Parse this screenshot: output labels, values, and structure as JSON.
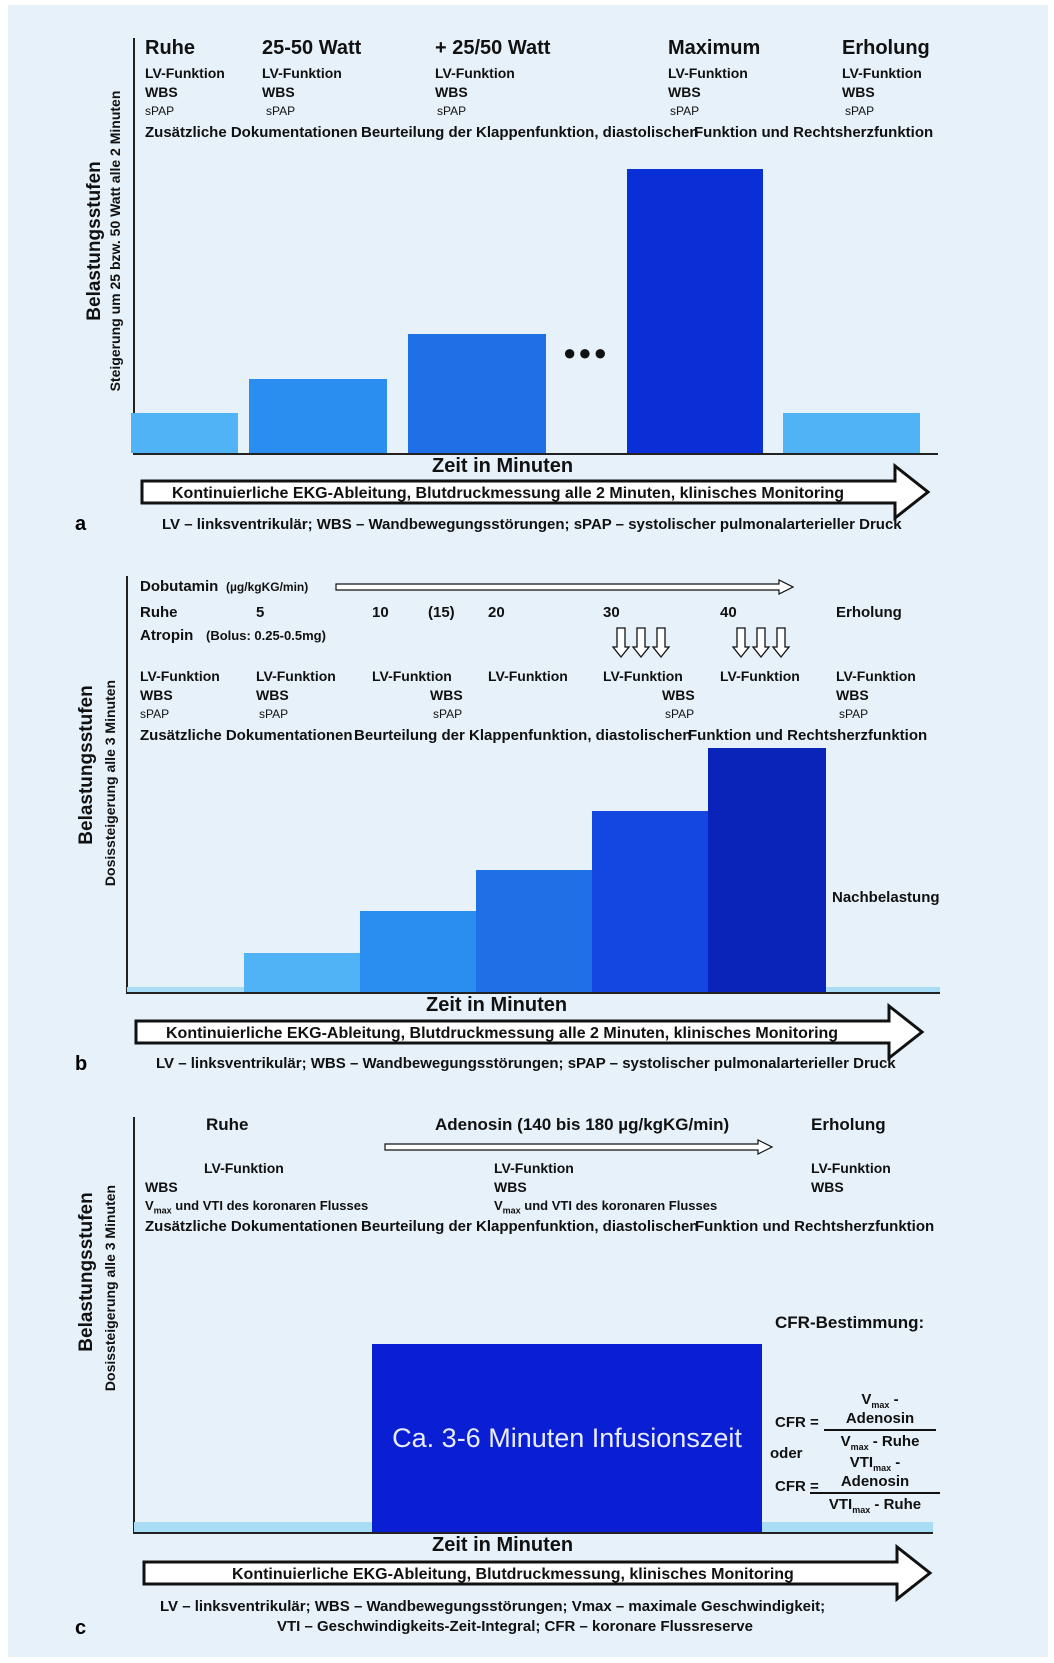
{
  "panel_a": {
    "label": "a",
    "ylabel_main": "Belastungsstufen",
    "ylabel_sub": "Steigerung um 25 bzw. 50 Watt alle 2 Minuten",
    "stages": [
      {
        "name": "Ruhe",
        "items": [
          "LV-Funktion",
          "WBS",
          "sPAP"
        ]
      },
      {
        "name": "25-50 Watt",
        "items": [
          "LV-Funktion",
          "WBS",
          "sPAP"
        ]
      },
      {
        "name": "+ 25/50 Watt",
        "items": [
          "LV-Funktion",
          "WBS",
          "sPAP"
        ]
      },
      {
        "name": "Maximum",
        "items": [
          "LV-Funktion",
          "WBS",
          "sPAP"
        ]
      },
      {
        "name": "Erholung",
        "items": [
          "LV-Funktion",
          "WBS",
          "sPAP"
        ]
      }
    ],
    "doc_line_1": "Zusätzliche Dokumentationen",
    "doc_line_2": "Beurteilung der Klappenfunktion, diastolischen",
    "doc_line_3": "Funktion und Rechtsherzfunktion",
    "ellipsis": "●●●",
    "xlabel": "Zeit in Minuten",
    "arrow_text": "Kontinuierliche EKG-Ableitung, Blutdruckmessung alle 2 Minuten, klinisches Monitoring",
    "footnote": "LV – linksventrikulär; WBS – Wandbewegungsstörungen; sPAP – systolischer pulmonalarterieller Druck",
    "bar_levels": [
      0.14,
      0.26,
      0.42,
      1.0,
      0.14
    ],
    "bar_colors": [
      "#4fb3f5",
      "#2a8ef0",
      "#1f70e6",
      "#0b2fd6",
      "#4fb3f5"
    ]
  },
  "panel_b": {
    "label": "b",
    "ylabel_main": "Belastungsstufen",
    "ylabel_sub": "Dosissteigerung alle 3 Minuten",
    "dobutamin": "Dobutamin",
    "dobutamin_unit": "(µg/kgKG/min)",
    "doses": [
      "Ruhe",
      "5",
      "10",
      "(15)",
      "20",
      "30",
      "40",
      "Erholung"
    ],
    "atropin": "Atropin",
    "atropin_dose": "(Bolus: 0.25-0.5mg)",
    "lv_items": [
      "LV-Funktion",
      "LV-Funktion",
      "LV-Funktion",
      "LV-Funktion",
      "LV-Funktion",
      "LV-Funktion",
      "LV-Funktion"
    ],
    "wbs_items": [
      "WBS",
      "WBS",
      "WBS",
      "WBS",
      "WBS"
    ],
    "spap_items": [
      "sPAP",
      "sPAP",
      "sPAP",
      "sPAP",
      "sPAP"
    ],
    "doc_line_1": "Zusätzliche Dokumentationen",
    "doc_line_2": "Beurteilung der Klappenfunktion, diastolischen",
    "doc_line_3": "Funktion und Rechtsherzfunktion",
    "nachbelastung": "Nachbelastung",
    "xlabel": "Zeit in Minuten",
    "arrow_text": "Kontinuierliche EKG-Ableitung, Blutdruckmessung alle 2 Minuten, klinisches Monitoring",
    "footnote": "LV – linksventrikulär; WBS – Wandbewegungsstörungen; sPAP – systolischer pulmonalarterieller Druck",
    "bar_levels": [
      0.02,
      0.16,
      0.33,
      0.5,
      0.74,
      1.0,
      0.02
    ],
    "bar_colors": [
      "#a9dcf5",
      "#4fb3f5",
      "#2a8ef0",
      "#1f70e6",
      "#1447e0",
      "#0a23b8",
      "#a9dcf5"
    ]
  },
  "panel_c": {
    "label": "c",
    "ylabel_main": "Belastungsstufen",
    "ylabel_sub": "Dosissteigerung alle 3 Minuten",
    "ruhe": "Ruhe",
    "adenosin": "Adenosin (140 bis 180 µg/kgKG/min)",
    "erholung": "Erholung",
    "lv": "LV-Funktion",
    "wbs": "WBS",
    "vmax_prefix": "V",
    "vmax_sub": "max",
    "vmax_suffix": " und VTI des koronaren Flusses",
    "doc_line_1": "Zusätzliche Dokumentationen",
    "doc_line_2": "Beurteilung der Klappenfunktion, diastolischen",
    "doc_line_3": "Funktion und Rechtsherzfunktion",
    "infusion_text": "Ca. 3-6 Minuten Infusionszeit",
    "cfr_title": "CFR-Bestimmung:",
    "cfr_eq": "CFR =",
    "oder": "oder",
    "frac1_num_a": "V",
    "frac1_num_sub": "max",
    "frac1_num_b": " - Adenosin",
    "frac1_den_a": "V",
    "frac1_den_sub": "max",
    "frac1_den_b": " - Ruhe",
    "frac2_num_a": "VTI",
    "frac2_num_sub": "max",
    "frac2_num_b": " - Adenosin",
    "frac2_den_a": "VTI",
    "frac2_den_sub": "max",
    "frac2_den_b": " - Ruhe",
    "xlabel": "Zeit in Minuten",
    "arrow_text": "Kontinuierliche EKG-Ableitung, Blutdruckmessung, klinisches Monitoring",
    "footnote_1": "LV – linksventrikulär; WBS – Wandbewegungsstörungen; Vmax – maximale Geschwindigkeit;",
    "footnote_2": "VTI – Geschwindigkeits-Zeit-Integral; CFR – koronare Flussreserve"
  },
  "colors": {
    "background": "#e7f1f9",
    "infusion_block": "#0a1fd4",
    "baseline_light": "#a9dcf5"
  }
}
